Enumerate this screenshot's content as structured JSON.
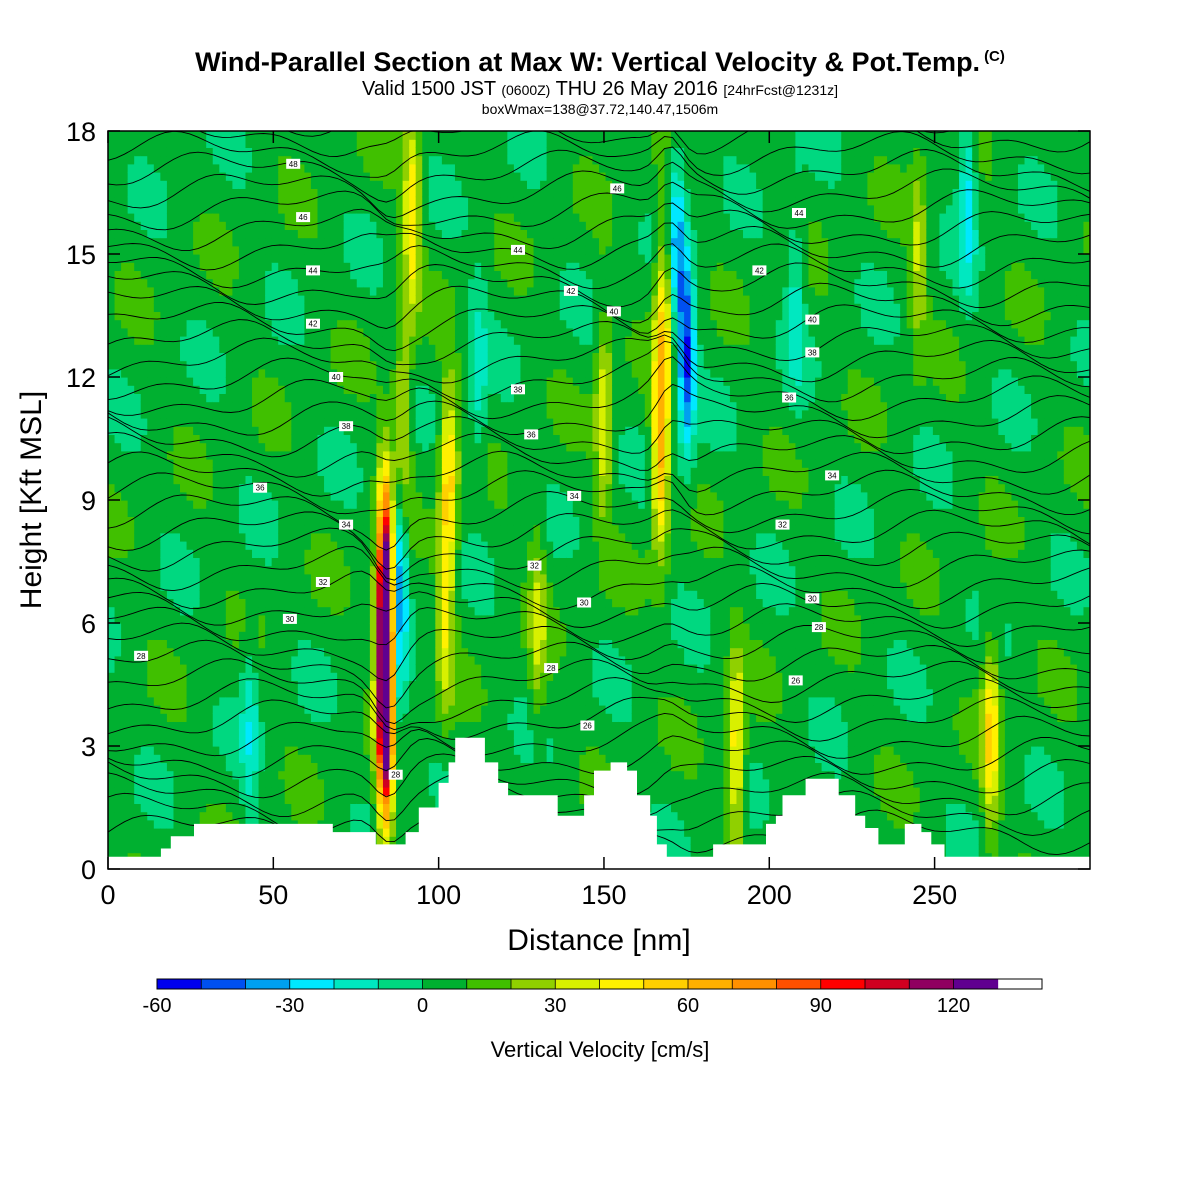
{
  "chart_data": {
    "type": "heatmap",
    "title": "Wind-Parallel Section at Max W: Vertical Velocity & Pot.Temp.",
    "title_note": "(C)",
    "subtitle": {
      "valid": "Valid 1500 JST",
      "utc": "(0600Z)",
      "date": "THU 26 May 2016",
      "forecast": "[24hrFcst@1231z]"
    },
    "info": "boxWmax=138@37.72,140.47,1506m",
    "xlabel": "Distance [nm]",
    "ylabel": "Height [Kft MSL]",
    "xlim": [
      0,
      297
    ],
    "ylim": [
      0,
      18
    ],
    "x_ticks": [
      "0",
      "50",
      "100",
      "150",
      "200",
      "250"
    ],
    "y_ticks": [
      "0",
      "3",
      "6",
      "9",
      "12",
      "15",
      "18"
    ],
    "grid": false,
    "colorbar": {
      "title": "Vertical Velocity [cm/s]",
      "min": -60,
      "max": 140,
      "step": 10,
      "labels": [
        "-60",
        "-30",
        "0",
        "30",
        "60",
        "90",
        "120"
      ],
      "colors": [
        "#0000ee",
        "#0050f0",
        "#00a0f0",
        "#00e8ff",
        "#00e8c0",
        "#00d880",
        "#00b030",
        "#40c000",
        "#90d000",
        "#d8f000",
        "#fff000",
        "#ffd000",
        "#ffb000",
        "#ff9000",
        "#ff5000",
        "#ff0000",
        "#d00020",
        "#900060",
        "#600090"
      ]
    },
    "background_w": 5,
    "updrafts": [
      {
        "x": 84,
        "z": 5.5,
        "w": 130
      },
      {
        "x": 84,
        "z": 7.6,
        "w": 75
      },
      {
        "x": 84,
        "z": 3.0,
        "w": 90
      },
      {
        "x": 89,
        "z": 10.5,
        "w": 40
      },
      {
        "x": 92,
        "z": 16.0,
        "w": 45
      },
      {
        "x": 103,
        "z": 9.5,
        "w": 50
      },
      {
        "x": 102,
        "z": 6.0,
        "w": 30
      },
      {
        "x": 167,
        "z": 10.0,
        "w": 55
      },
      {
        "x": 168,
        "z": 13.5,
        "w": 45
      },
      {
        "x": 150,
        "z": 11.0,
        "w": 35
      },
      {
        "x": 190,
        "z": 2.8,
        "w": 45
      },
      {
        "x": 267,
        "z": 3.3,
        "w": 45
      },
      {
        "x": 245,
        "z": 15.0,
        "w": 25
      },
      {
        "x": 130,
        "z": 6.0,
        "w": 25
      }
    ],
    "downdrafts": [
      {
        "x": 88,
        "z": 7.8,
        "w": -50
      },
      {
        "x": 87,
        "z": 4.5,
        "w": -30
      },
      {
        "x": 175,
        "z": 12.5,
        "w": -55
      },
      {
        "x": 172,
        "z": 15.5,
        "w": -35
      },
      {
        "x": 260,
        "z": 16.5,
        "w": -30
      },
      {
        "x": 208,
        "z": 14.0,
        "w": -20
      },
      {
        "x": 112,
        "z": 12.0,
        "w": -20
      },
      {
        "x": 43,
        "z": 3.5,
        "w": -20
      }
    ],
    "terrain": [
      [
        0,
        0.3
      ],
      [
        16,
        0.3
      ],
      [
        16,
        0.5
      ],
      [
        19,
        0.5
      ],
      [
        19,
        0.8
      ],
      [
        26,
        0.8
      ],
      [
        26,
        1.1
      ],
      [
        68,
        1.1
      ],
      [
        68,
        0.9
      ],
      [
        81,
        0.9
      ],
      [
        81,
        0.6
      ],
      [
        90,
        0.6
      ],
      [
        90,
        0.9
      ],
      [
        94,
        0.9
      ],
      [
        94,
        1.5
      ],
      [
        100,
        1.5
      ],
      [
        100,
        2.1
      ],
      [
        103,
        2.1
      ],
      [
        103,
        2.6
      ],
      [
        105,
        2.6
      ],
      [
        105,
        3.2
      ],
      [
        114,
        3.2
      ],
      [
        114,
        2.6
      ],
      [
        118,
        2.6
      ],
      [
        118,
        2.1
      ],
      [
        121,
        2.1
      ],
      [
        121,
        1.8
      ],
      [
        136,
        1.8
      ],
      [
        136,
        1.3
      ],
      [
        144,
        1.3
      ],
      [
        144,
        1.8
      ],
      [
        147,
        1.8
      ],
      [
        147,
        2.4
      ],
      [
        152,
        2.4
      ],
      [
        152,
        2.6
      ],
      [
        157,
        2.6
      ],
      [
        157,
        2.4
      ],
      [
        160,
        2.4
      ],
      [
        160,
        1.8
      ],
      [
        164,
        1.8
      ],
      [
        164,
        1.3
      ],
      [
        166,
        1.3
      ],
      [
        166,
        0.6
      ],
      [
        169,
        0.6
      ],
      [
        169,
        0.3
      ],
      [
        183,
        0.3
      ],
      [
        183,
        0.6
      ],
      [
        199,
        0.6
      ],
      [
        199,
        1.1
      ],
      [
        202,
        1.1
      ],
      [
        202,
        1.3
      ],
      [
        204,
        1.3
      ],
      [
        204,
        1.8
      ],
      [
        211,
        1.8
      ],
      [
        211,
        2.2
      ],
      [
        221,
        2.2
      ],
      [
        221,
        1.8
      ],
      [
        226,
        1.8
      ],
      [
        226,
        1.3
      ],
      [
        229,
        1.3
      ],
      [
        229,
        1.0
      ],
      [
        233,
        1.0
      ],
      [
        233,
        0.6
      ],
      [
        241,
        0.6
      ],
      [
        241,
        1.1
      ],
      [
        246,
        1.1
      ],
      [
        246,
        0.9
      ],
      [
        249,
        0.9
      ],
      [
        249,
        0.6
      ],
      [
        253,
        0.6
      ],
      [
        253,
        0.3
      ],
      [
        297,
        0.3
      ],
      [
        297,
        0
      ],
      [
        0,
        0
      ]
    ],
    "contour_labels": [
      {
        "text": "48",
        "x": 56,
        "z": 17.2
      },
      {
        "text": "46",
        "x": 59,
        "z": 15.9
      },
      {
        "text": "44",
        "x": 62,
        "z": 14.6
      },
      {
        "text": "42",
        "x": 62,
        "z": 13.3
      },
      {
        "text": "40",
        "x": 69,
        "z": 12.0
      },
      {
        "text": "38",
        "x": 72,
        "z": 10.8
      },
      {
        "text": "36",
        "x": 46,
        "z": 9.3
      },
      {
        "text": "34",
        "x": 72,
        "z": 8.4
      },
      {
        "text": "32",
        "x": 65,
        "z": 7.0
      },
      {
        "text": "30",
        "x": 55,
        "z": 6.1
      },
      {
        "text": "28",
        "x": 10,
        "z": 5.2
      },
      {
        "text": "28",
        "x": 87,
        "z": 2.3
      },
      {
        "text": "46",
        "x": 154,
        "z": 16.6
      },
      {
        "text": "44",
        "x": 124,
        "z": 15.1
      },
      {
        "text": "42",
        "x": 140,
        "z": 14.1
      },
      {
        "text": "40",
        "x": 153,
        "z": 13.6
      },
      {
        "text": "38",
        "x": 124,
        "z": 11.7
      },
      {
        "text": "36",
        "x": 128,
        "z": 10.6
      },
      {
        "text": "34",
        "x": 141,
        "z": 9.1
      },
      {
        "text": "32",
        "x": 129,
        "z": 7.4
      },
      {
        "text": "30",
        "x": 144,
        "z": 6.5
      },
      {
        "text": "28",
        "x": 134,
        "z": 4.9
      },
      {
        "text": "26",
        "x": 145,
        "z": 3.5
      },
      {
        "text": "44",
        "x": 209,
        "z": 16.0
      },
      {
        "text": "42",
        "x": 197,
        "z": 14.6
      },
      {
        "text": "40",
        "x": 213,
        "z": 13.4
      },
      {
        "text": "38",
        "x": 213,
        "z": 12.6
      },
      {
        "text": "36",
        "x": 206,
        "z": 11.5
      },
      {
        "text": "34",
        "x": 219,
        "z": 9.6
      },
      {
        "text": "32",
        "x": 204,
        "z": 8.4
      },
      {
        "text": "30",
        "x": 213,
        "z": 6.6
      },
      {
        "text": "28",
        "x": 215,
        "z": 5.9
      },
      {
        "text": "26",
        "x": 208,
        "z": 4.6
      }
    ]
  }
}
